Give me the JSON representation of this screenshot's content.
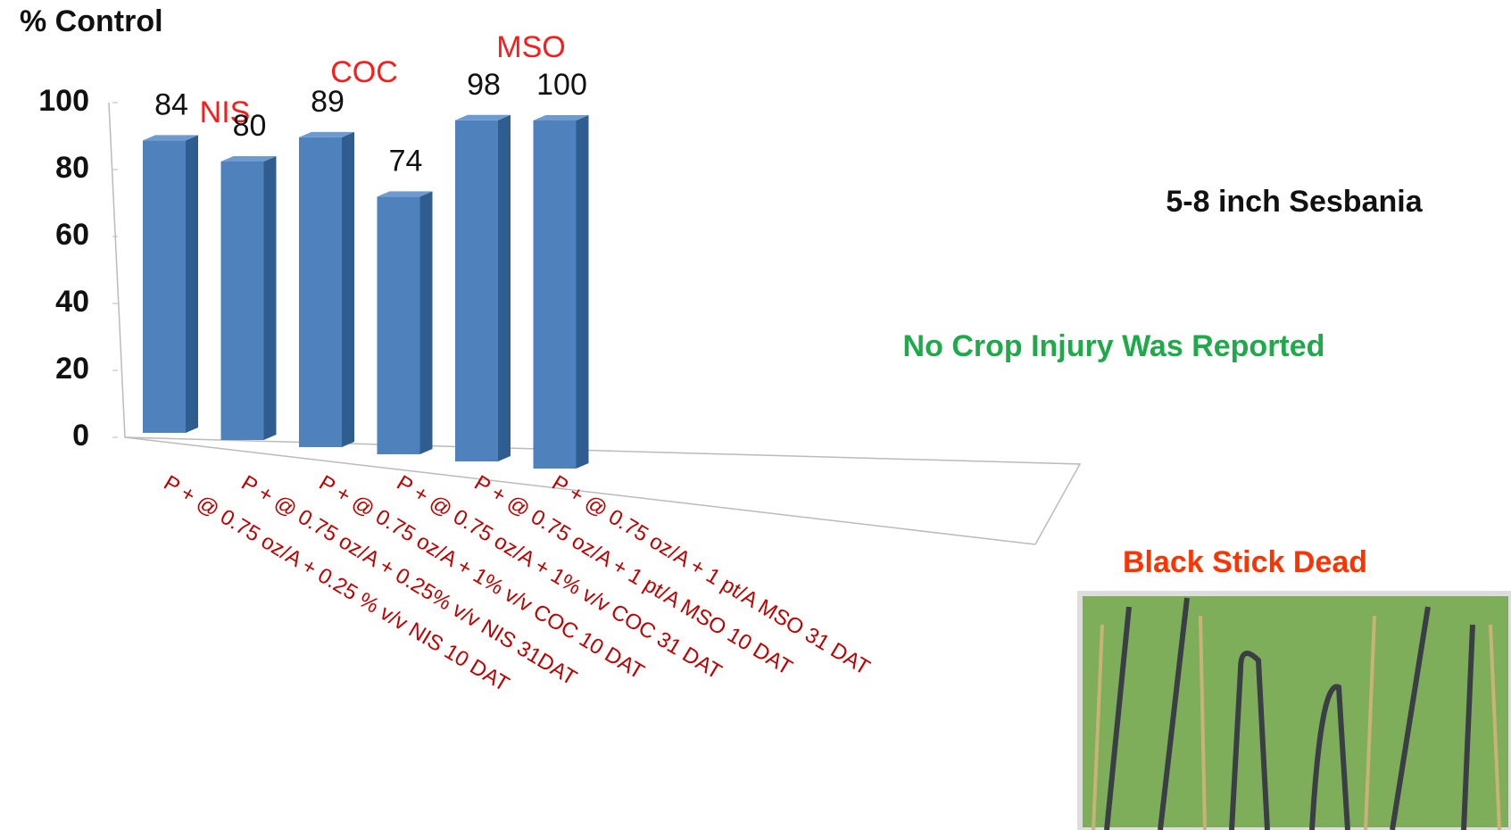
{
  "chart_data": {
    "type": "bar",
    "y_label": "% Control",
    "categories": [
      "P + @ 0.75 oz/A + 0.25 % v/v NIS 10 DAT",
      "P + @ 0.75 oz/A + 0.25% v/v NIS 31DAT",
      "P + @ 0.75 oz/A + 1% v/v COC 10 DAT",
      "P + @ 0.75 oz/A + 1% v/v COC 31 DAT",
      "P + @ 0.75 oz/A + 1 pt/A MSO 10 DAT",
      "P + @ 0.75 oz/A + 1 pt/A MSO 31 DAT"
    ],
    "values": [
      84,
      80,
      89,
      74,
      98,
      100
    ],
    "color": "#4f81bd",
    "ylim": [
      0,
      100
    ],
    "yticks": [
      0,
      20,
      40,
      60,
      80,
      100
    ],
    "group_labels": [
      "NIS",
      "COC",
      "MSO"
    ],
    "notes": [
      "5-8 inch Sesbania",
      "No Crop Injury Was Reported",
      "Black Stick Dead"
    ]
  }
}
